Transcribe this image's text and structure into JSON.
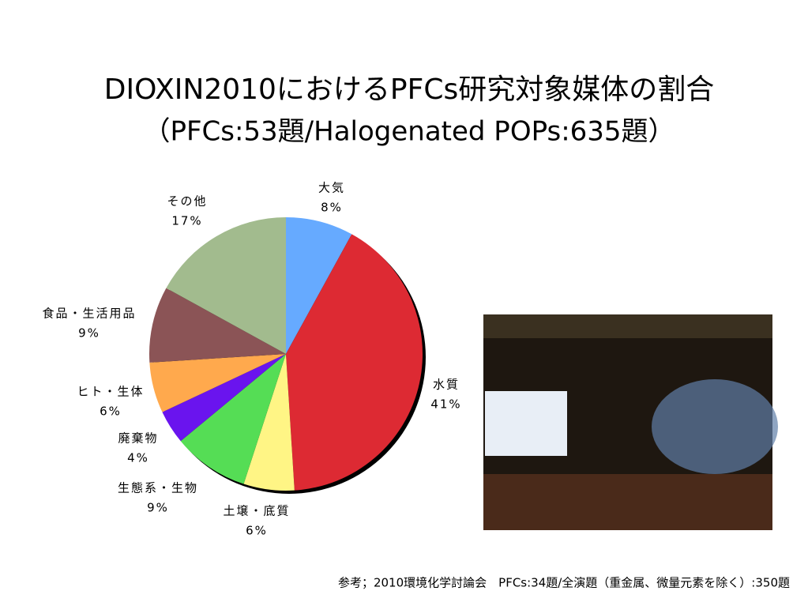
{
  "chart_data": {
    "type": "pie",
    "title": "DIOXIN2010におけるPFCs研究対象媒体の割合",
    "subtitle": "（PFCs:53題/Halogenated POPs:635題）",
    "categories": [
      "大気",
      "水質",
      "土壌・底質",
      "生態系・生物",
      "廃棄物",
      "ヒト・生体",
      "食品・生活用品",
      "その他"
    ],
    "values": [
      8,
      41,
      6,
      9,
      4,
      6,
      9,
      17
    ],
    "value_labels": [
      "8%",
      "41%",
      "6%",
      "9%",
      "4%",
      "6%",
      "9%",
      "17%"
    ],
    "colors": [
      "#66aaff",
      "#dd2a33",
      "#fff585",
      "#55dd55",
      "#6a14ee",
      "#ffa94d",
      "#8b5456",
      "#a2bb8e"
    ]
  },
  "footnote": "参考；2010環境化学討論会　PFCs:34題/全演題（重金属、微量元素を除く）:350題"
}
